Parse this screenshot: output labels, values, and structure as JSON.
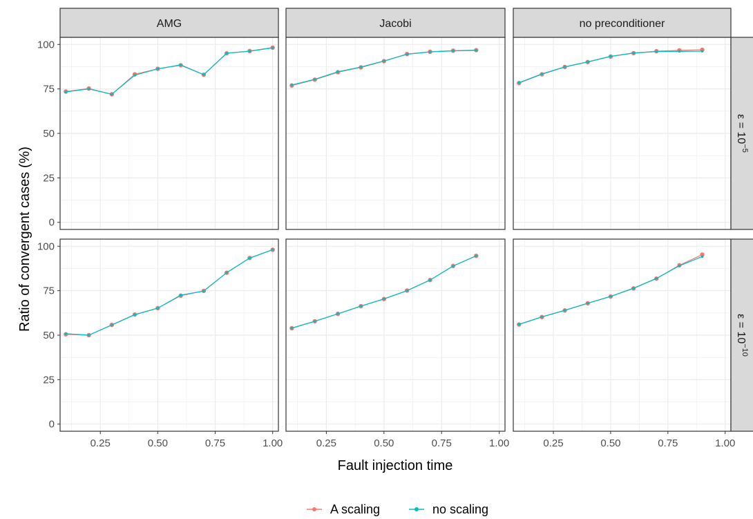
{
  "chart_data": {
    "type": "line",
    "xlabel": "Fault injection time",
    "ylabel": "Ratio of convergent cases (%)",
    "xlim": [
      0.075,
      1.025
    ],
    "ylim": [
      -4,
      104
    ],
    "x_ticks": [
      0.25,
      0.5,
      0.75,
      1.0
    ],
    "x_tick_labels": [
      "0.25",
      "0.50",
      "0.75",
      "1.00"
    ],
    "y_ticks": [
      0,
      25,
      50,
      75,
      100
    ],
    "y_tick_labels": [
      "0",
      "25",
      "50",
      "75",
      "100"
    ],
    "grid": true,
    "legend": {
      "position": "bottom",
      "entries": [
        {
          "name": "A scaling",
          "color": "#F8766D"
        },
        {
          "name": "no scaling",
          "color": "#00BFC4"
        }
      ]
    },
    "columns": [
      "AMG",
      "Jacobi",
      "no preconditioner"
    ],
    "rows": [
      {
        "label": "ε = 10",
        "exponent": "−5"
      },
      {
        "label": "ε = 10",
        "exponent": "−10"
      }
    ],
    "panels": [
      {
        "column": "AMG",
        "row": 0,
        "series": [
          {
            "name": "A scaling",
            "x": [
              0.1,
              0.2,
              0.3,
              0.4,
              0.5,
              0.6,
              0.7,
              0.8,
              0.9,
              1.0
            ],
            "y": [
              73.5,
              75.2,
              72.0,
              83.2,
              86.3,
              88.3,
              83.0,
              95.0,
              96.3,
              98.2
            ]
          },
          {
            "name": "no scaling",
            "x": [
              0.1,
              0.2,
              0.3,
              0.4,
              0.5,
              0.6,
              0.7,
              0.8,
              0.9,
              1.0
            ],
            "y": [
              73.3,
              75.0,
              72.0,
              82.7,
              86.3,
              88.5,
              83.0,
              95.1,
              96.2,
              98.1
            ]
          }
        ]
      },
      {
        "column": "Jacobi",
        "row": 0,
        "series": [
          {
            "name": "A scaling",
            "x": [
              0.1,
              0.2,
              0.3,
              0.4,
              0.5,
              0.6,
              0.7,
              0.8,
              0.9
            ],
            "y": [
              76.9,
              80.2,
              84.4,
              87.1,
              90.6,
              94.6,
              95.9,
              96.5,
              96.8
            ]
          },
          {
            "name": "no scaling",
            "x": [
              0.1,
              0.2,
              0.3,
              0.4,
              0.5,
              0.6,
              0.7,
              0.8,
              0.9
            ],
            "y": [
              77.2,
              80.4,
              84.6,
              87.3,
              90.7,
              94.5,
              95.8,
              96.4,
              96.7
            ]
          }
        ]
      },
      {
        "column": "no preconditioner",
        "row": 0,
        "series": [
          {
            "name": "A scaling",
            "x": [
              0.1,
              0.2,
              0.3,
              0.4,
              0.5,
              0.6,
              0.7,
              0.8,
              0.9
            ],
            "y": [
              78.3,
              83.2,
              87.3,
              90.1,
              93.2,
              95.1,
              96.2,
              96.7,
              97.0
            ]
          },
          {
            "name": "no scaling",
            "x": [
              0.1,
              0.2,
              0.3,
              0.4,
              0.5,
              0.6,
              0.7,
              0.8,
              0.9
            ],
            "y": [
              78.5,
              83.4,
              87.4,
              90.2,
              93.3,
              95.2,
              96.0,
              96.1,
              96.2
            ]
          }
        ]
      },
      {
        "column": "AMG",
        "row": 1,
        "series": [
          {
            "name": "A scaling",
            "x": [
              0.1,
              0.2,
              0.3,
              0.4,
              0.5,
              0.6,
              0.7,
              0.8,
              0.9,
              1.0
            ],
            "y": [
              50.5,
              50.0,
              55.8,
              61.6,
              65.2,
              72.2,
              74.9,
              85.1,
              93.4,
              98.0
            ]
          },
          {
            "name": "no scaling",
            "x": [
              0.1,
              0.2,
              0.3,
              0.4,
              0.5,
              0.6,
              0.7,
              0.8,
              0.9,
              1.0
            ],
            "y": [
              50.8,
              50.0,
              55.7,
              61.5,
              65.2,
              72.5,
              74.8,
              85.2,
              93.3,
              98.1
            ]
          }
        ]
      },
      {
        "column": "Jacobi",
        "row": 1,
        "series": [
          {
            "name": "A scaling",
            "x": [
              0.1,
              0.2,
              0.3,
              0.4,
              0.5,
              0.6,
              0.7,
              0.8,
              0.9
            ],
            "y": [
              53.9,
              57.8,
              62.0,
              66.3,
              70.3,
              75.1,
              81.0,
              88.9,
              94.6
            ]
          },
          {
            "name": "no scaling",
            "x": [
              0.1,
              0.2,
              0.3,
              0.4,
              0.5,
              0.6,
              0.7,
              0.8,
              0.9
            ],
            "y": [
              54.0,
              57.8,
              62.0,
              66.3,
              70.4,
              75.0,
              81.0,
              88.9,
              94.6
            ]
          }
        ]
      },
      {
        "column": "no preconditioner",
        "row": 1,
        "series": [
          {
            "name": "A scaling",
            "x": [
              0.1,
              0.2,
              0.3,
              0.4,
              0.5,
              0.6,
              0.7,
              0.8,
              0.9
            ],
            "y": [
              56.0,
              60.2,
              63.9,
              67.9,
              71.7,
              76.3,
              81.8,
              89.3,
              95.3
            ]
          },
          {
            "name": "no scaling",
            "x": [
              0.1,
              0.2,
              0.3,
              0.4,
              0.5,
              0.6,
              0.7,
              0.8,
              0.9
            ],
            "y": [
              56.1,
              60.3,
              64.0,
              68.0,
              71.8,
              76.4,
              81.9,
              89.0,
              94.2
            ]
          }
        ]
      }
    ]
  }
}
